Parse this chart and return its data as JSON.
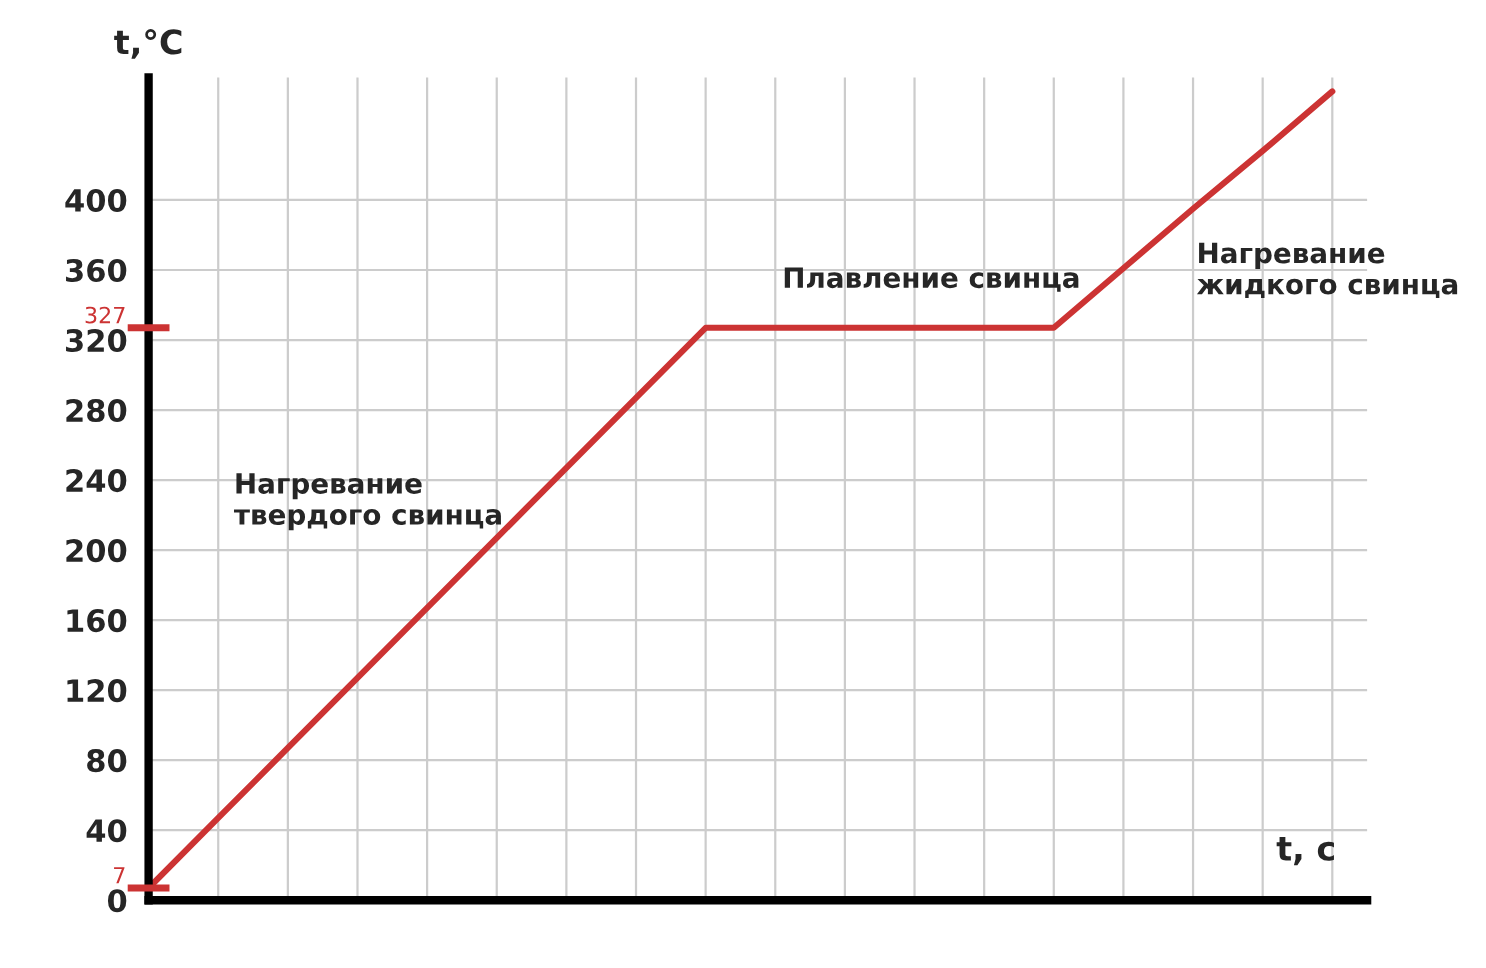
{
  "chart_data": {
    "type": "line",
    "xlabel": "t, с",
    "ylabel": "t,°C",
    "categories": [
      null,
      null,
      null,
      null,
      null,
      null,
      null,
      null,
      null,
      null,
      null,
      null,
      null,
      null,
      null,
      null,
      null,
      null
    ],
    "series": [
      {
        "color": "#cc3333",
        "values": [
          7,
          47,
          87,
          127,
          167,
          207,
          247,
          287,
          327,
          327,
          327,
          327,
          327,
          327,
          361,
          395,
          428,
          462
        ]
      }
    ],
    "line_style": "solid",
    "ylim": [
      0,
      470
    ],
    "yticks": [
      0,
      40,
      80,
      120,
      160,
      200,
      240,
      280,
      320,
      360,
      400
    ],
    "ref_lines": [
      {
        "axis": "y",
        "value": 7,
        "label": "7",
        "color": "#cc3333"
      },
      {
        "axis": "y",
        "value": 327,
        "label": "327",
        "color": "#cc3333"
      }
    ],
    "grid": true,
    "annotations": [
      "Нагревание\nтвердого свинца",
      "Плавление свинца",
      "Нагревание\nжидкого свинца"
    ]
  }
}
